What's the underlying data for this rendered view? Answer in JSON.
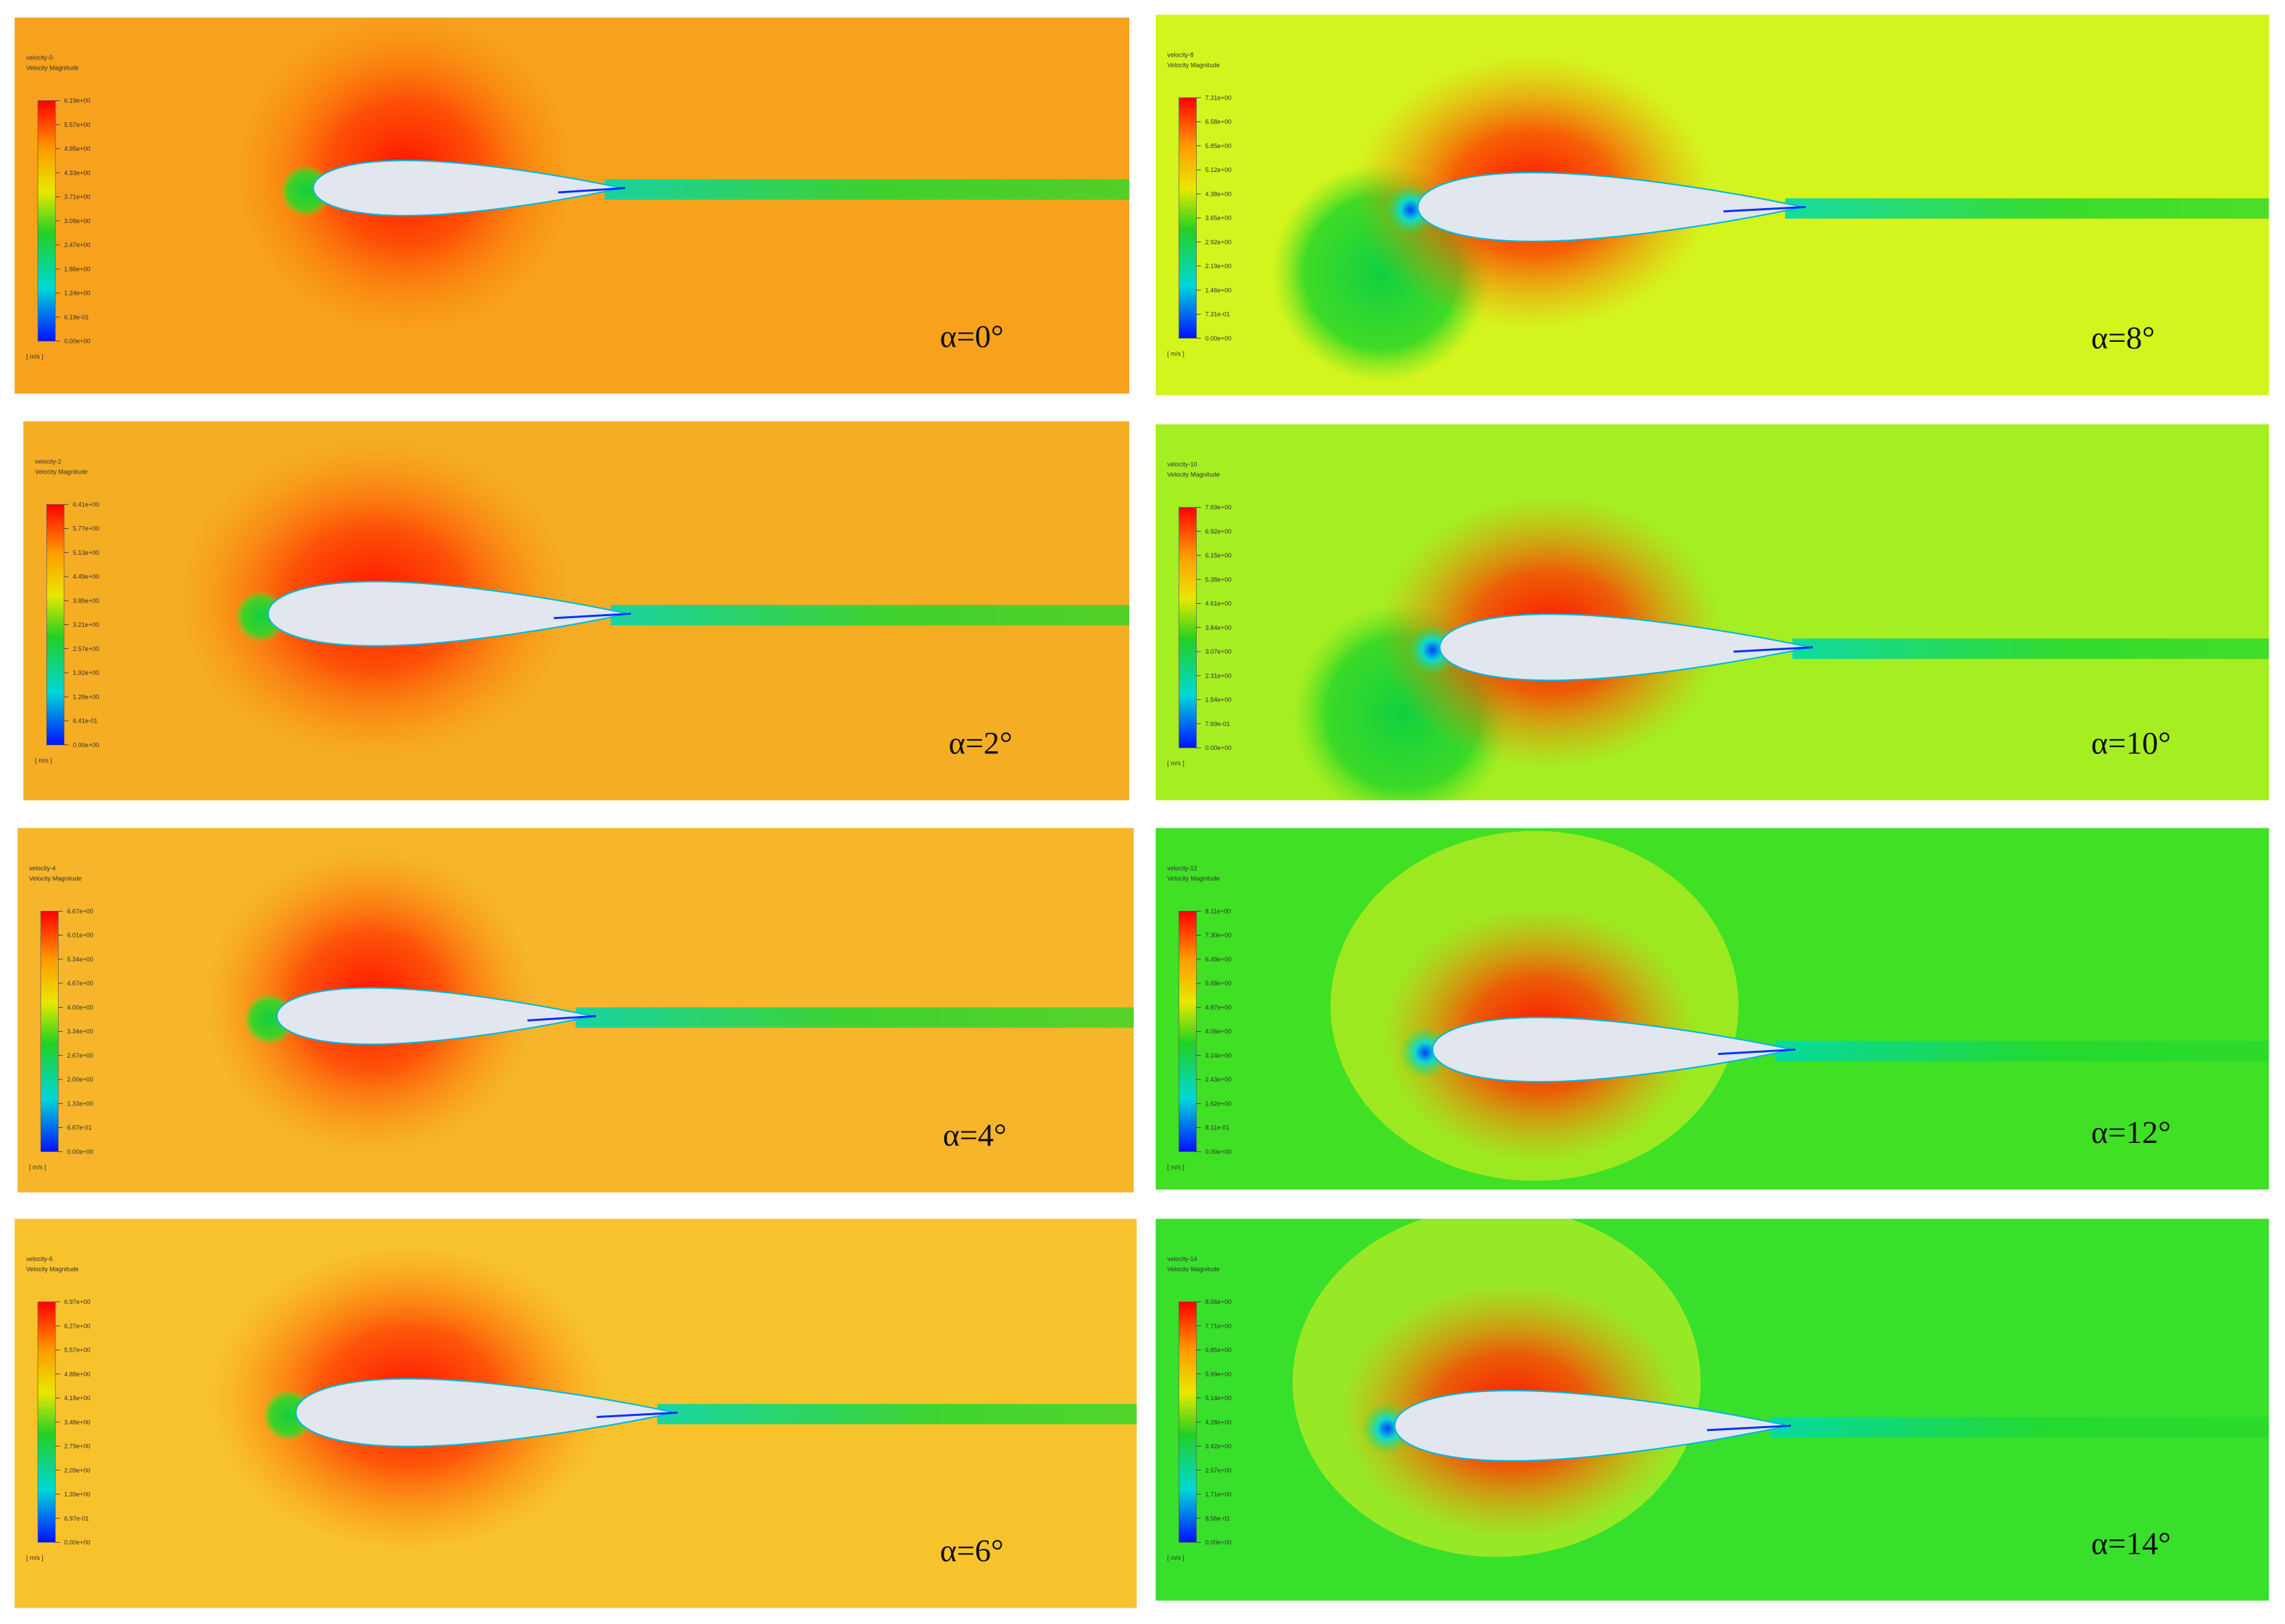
{
  "panels": [
    {
      "title": "velocity-0",
      "subtitle": "Velocity Magnitude",
      "legend_labels": [
        "6.19e+00",
        "5.57e+00",
        "4.95e+00",
        "4.33e+00",
        "3.71e+00",
        "3.09e+00",
        "2.47e+00",
        "1.86e+00",
        "1.24e+00",
        "6.19e-01",
        "0.00e+00"
      ],
      "unit": "[ m/s ]",
      "angle_label": "α=0°"
    },
    {
      "title": "velocity-2",
      "subtitle": "Velocity Magnitude",
      "legend_labels": [
        "6.41e+00",
        "5.77e+00",
        "5.13e+00",
        "4.49e+00",
        "3.85e+00",
        "3.21e+00",
        "2.57e+00",
        "1.92e+00",
        "1.28e+00",
        "6.41e-01",
        "0.00e+00"
      ],
      "unit": "[ m/s ]",
      "angle_label": "α=2°"
    },
    {
      "title": "velocity-4",
      "subtitle": "Velocity Magnitude",
      "legend_labels": [
        "6.67e+00",
        "6.01e+00",
        "5.34e+00",
        "4.67e+00",
        "4.00e+00",
        "3.34e+00",
        "2.67e+00",
        "2.00e+00",
        "1.33e+00",
        "6.67e-01",
        "0.00e+00"
      ],
      "unit": "[ m/s ]",
      "angle_label": "α=4°"
    },
    {
      "title": "velocity-6",
      "subtitle": "Velocity Magnitude",
      "legend_labels": [
        "6.97e+00",
        "6.27e+00",
        "5.57e+00",
        "4.88e+00",
        "4.18e+00",
        "3.48e+00",
        "2.79e+00",
        "2.09e+00",
        "1.39e+00",
        "6.97e-01",
        "0.00e+00"
      ],
      "unit": "[ m/s ]",
      "angle_label": "α=6°"
    },
    {
      "title": "velocity-8",
      "subtitle": "Velocity Magnitude",
      "legend_labels": [
        "7.31e+00",
        "6.58e+00",
        "5.85e+00",
        "5.12e+00",
        "4.38e+00",
        "3.65e+00",
        "2.92e+00",
        "2.19e+00",
        "1.46e+00",
        "7.31e-01",
        "0.00e+00"
      ],
      "unit": "[ m/s ]",
      "angle_label": "α=8°"
    },
    {
      "title": "velocity-10",
      "subtitle": "Velocity Magnitude",
      "legend_labels": [
        "7.69e+00",
        "6.92e+00",
        "6.15e+00",
        "5.38e+00",
        "4.61e+00",
        "3.84e+00",
        "3.07e+00",
        "2.31e+00",
        "1.54e+00",
        "7.69e-01",
        "0.00e+00"
      ],
      "unit": "[ m/s ]",
      "angle_label": "α=10°"
    },
    {
      "title": "velocity-12",
      "subtitle": "Velocity Magnitude",
      "legend_labels": [
        "8.11e+00",
        "7.30e+00",
        "6.49e+00",
        "5.68e+00",
        "4.87e+00",
        "4.06e+00",
        "3.24e+00",
        "2.43e+00",
        "1.62e+00",
        "8.11e-01",
        "0.00e+00"
      ],
      "unit": "[ m/s ]",
      "angle_label": "α=12°"
    },
    {
      "title": "velocity-14",
      "subtitle": "Velocity Magnitude",
      "legend_labels": [
        "8.56e+00",
        "7.71e+00",
        "6.85e+00",
        "5.99e+00",
        "5.14e+00",
        "4.28e+00",
        "3.42e+00",
        "2.57e+00",
        "1.71e+00",
        "8.56e-01",
        "0.00e+00"
      ],
      "unit": "[ m/s ]",
      "angle_label": "α=14°"
    }
  ]
}
